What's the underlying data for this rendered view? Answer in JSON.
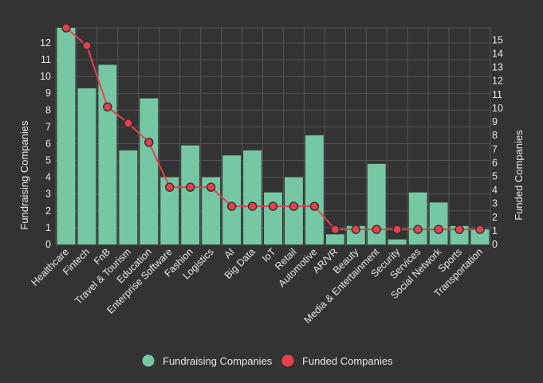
{
  "chart_data": {
    "type": "bar",
    "categories": [
      "Healthcare",
      "Fintech",
      "FnB",
      "Travel & Tourism",
      "Education",
      "Enterprise Software",
      "Fashion",
      "Logistics",
      "AI",
      "Big Data",
      "IoT",
      "Retail",
      "Automotive",
      "AR/VR",
      "Beauty",
      "Media & Entertainment",
      "Security",
      "Services",
      "Social Network",
      "Sports",
      "Transportation"
    ],
    "series": [
      {
        "name": "Fundraising Companies",
        "type": "bar",
        "axis": "left",
        "color": "#76c8a4",
        "values": [
          12.9,
          9.3,
          10.7,
          5.6,
          8.7,
          4.0,
          5.9,
          4.0,
          5.3,
          5.6,
          3.1,
          4.0,
          6.5,
          0.6,
          1.1,
          4.8,
          0.3,
          3.1,
          2.5,
          1.1,
          0.9
        ]
      },
      {
        "name": "Funded Companies",
        "type": "line",
        "axis": "right",
        "color": "#e8404c",
        "values": [
          15.9,
          14.6,
          10.1,
          8.9,
          7.5,
          4.2,
          4.2,
          4.2,
          2.8,
          2.8,
          2.8,
          2.8,
          2.8,
          1.1,
          1.1,
          1.1,
          1.1,
          1.1,
          1.1,
          1.1,
          1.1
        ]
      }
    ],
    "ylabel": "Fundraising Companies",
    "y2label": "Funded Companies",
    "ylim": [
      0,
      12.9
    ],
    "y2lim": [
      0,
      15.9
    ],
    "yticks": [
      0,
      1,
      2,
      3,
      4,
      5,
      6,
      7,
      8,
      9,
      10,
      11,
      12
    ],
    "y2ticks": [
      0,
      1,
      2,
      3,
      4,
      5,
      6,
      7,
      8,
      9,
      10,
      11,
      12,
      13,
      14,
      15
    ],
    "grid": true,
    "legend": "bottom-center",
    "background": "#333333",
    "grid_color": "#555555"
  }
}
